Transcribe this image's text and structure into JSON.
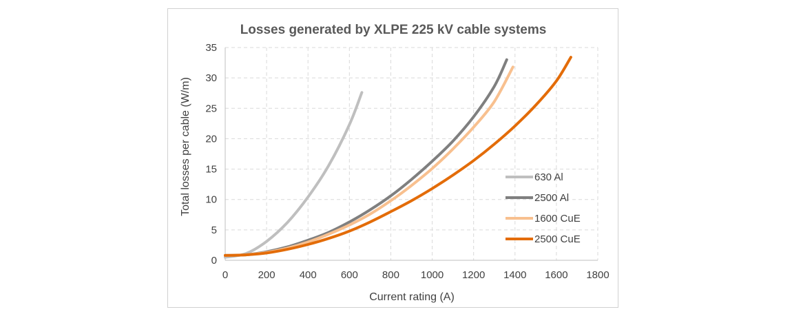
{
  "chart_data": {
    "type": "line",
    "title": "Losses generated by XLPE 225 kV cable systems",
    "xlabel": "Current rating (A)",
    "ylabel": "Total losses per cable (W/m)",
    "xlim": [
      0,
      1800
    ],
    "ylim": [
      0,
      35
    ],
    "xticks": [
      0,
      200,
      400,
      600,
      800,
      1000,
      1200,
      1400,
      1600,
      1800
    ],
    "yticks": [
      0,
      5,
      10,
      15,
      20,
      25,
      30,
      35
    ],
    "grid": true,
    "legend_position": "right",
    "series": [
      {
        "name": "630 Al",
        "color": "#bfbfbf",
        "x": [
          0,
          100,
          200,
          300,
          400,
          500,
          600,
          660
        ],
        "y": [
          0.5,
          1.1,
          3.1,
          6.2,
          10.4,
          15.6,
          22.3,
          27.6
        ]
      },
      {
        "name": "2500 Al",
        "color": "#7f7f7f",
        "x": [
          0,
          100,
          200,
          300,
          400,
          500,
          600,
          700,
          800,
          900,
          1000,
          1100,
          1200,
          1300,
          1360
        ],
        "y": [
          0.8,
          0.9,
          1.4,
          2.2,
          3.3,
          4.6,
          6.3,
          8.3,
          10.6,
          13.3,
          16.3,
          19.6,
          23.6,
          28.6,
          33.0
        ]
      },
      {
        "name": "1600 CuE",
        "color": "#f8c08f",
        "x": [
          0,
          100,
          200,
          300,
          400,
          500,
          600,
          700,
          800,
          900,
          1000,
          1100,
          1200,
          1300,
          1390
        ],
        "y": [
          0.8,
          0.9,
          1.3,
          2.0,
          3.0,
          4.3,
          5.8,
          7.6,
          9.8,
          12.3,
          15.1,
          18.3,
          21.9,
          26.1,
          31.8
        ]
      },
      {
        "name": "2500 CuE",
        "color": "#e36c09",
        "x": [
          0,
          100,
          200,
          300,
          400,
          500,
          600,
          700,
          800,
          900,
          1000,
          1100,
          1200,
          1300,
          1400,
          1500,
          1600,
          1670
        ],
        "y": [
          0.8,
          0.9,
          1.2,
          1.8,
          2.6,
          3.6,
          4.8,
          6.3,
          8.0,
          9.8,
          11.8,
          14.0,
          16.4,
          19.1,
          22.1,
          25.5,
          29.5,
          33.4
        ]
      }
    ]
  }
}
